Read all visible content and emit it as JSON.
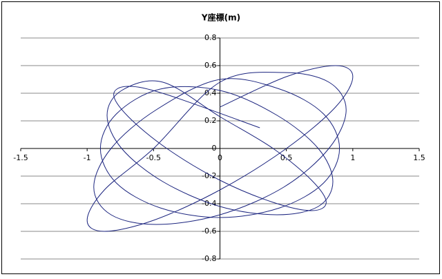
{
  "chart_data": {
    "type": "scatter",
    "title": "Y座標(m)",
    "x": [
      0,
      0.5,
      0.87,
      1,
      0.87,
      0.5,
      0,
      -0.5,
      -0.87,
      -1,
      -0.87,
      -0.5,
      0,
      0.48,
      0.82,
      0.95,
      0.82,
      0.48,
      0,
      -0.48,
      -0.82,
      -0.95,
      -0.82,
      -0.48,
      0,
      0.45,
      0.78,
      0.9,
      0.78,
      0.45,
      0,
      -0.45,
      -0.78,
      -0.9,
      -0.78,
      -0.45,
      0,
      0.43,
      0.74,
      0.85,
      0.74,
      0.43,
      0,
      -0.43,
      -0.74,
      -0.85,
      -0.74,
      -0.43,
      0,
      0.4,
      0.69,
      0.8,
      0.69,
      0.4,
      0,
      -0.4,
      -0.69,
      -0.8,
      -0.69,
      -0.4,
      0.3
    ],
    "series": [
      {
        "color": "#1a237e",
        "values": [
          0.3,
          0.52,
          0.6,
          0.52,
          0.3,
          0,
          -0.3,
          -0.52,
          -0.6,
          -0.52,
          -0.3,
          0,
          0.48,
          0.55,
          0.48,
          0.28,
          0,
          -0.28,
          -0.48,
          -0.55,
          -0.48,
          -0.28,
          0,
          0.28,
          0.5,
          0.43,
          0.25,
          0,
          -0.25,
          -0.43,
          -0.5,
          -0.43,
          -0.25,
          0,
          0.25,
          0.43,
          0.42,
          0.24,
          0,
          -0.24,
          -0.42,
          -0.48,
          -0.42,
          -0.24,
          0,
          0.24,
          0.42,
          0.48,
          0.23,
          0,
          -0.23,
          -0.39,
          -0.45,
          -0.39,
          -0.23,
          0,
          0.23,
          0.39,
          0.45,
          0.39,
          0.15
        ]
      }
    ],
    "xlim": [
      -1.5,
      1.5
    ],
    "xticks": [
      -1.5,
      -1,
      -0.5,
      0,
      0.5,
      1,
      1.5
    ],
    "ylim": [
      -0.8,
      0.8
    ],
    "yticks": [
      -0.8,
      -0.6,
      -0.4,
      -0.2,
      0,
      0.2,
      0.4,
      0.6,
      0.8
    ],
    "grid": true
  }
}
